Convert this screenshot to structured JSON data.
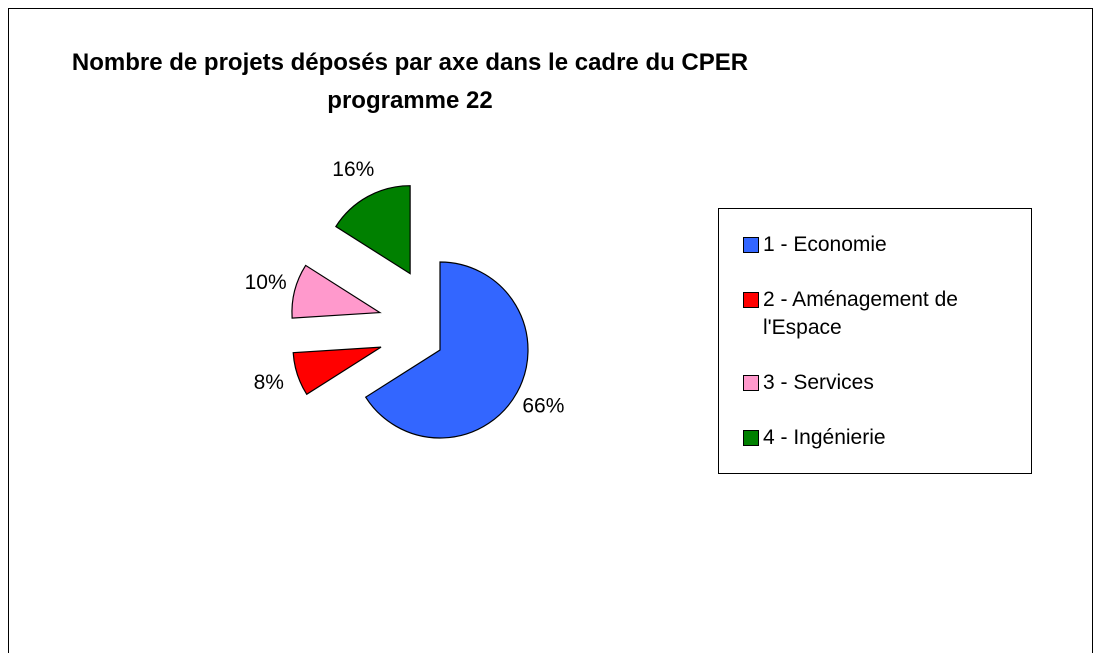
{
  "chart_data": {
    "type": "pie",
    "title": "Nombre de projets déposés par axe dans le cadre du CPER programme 22",
    "categories": [
      "1 - Economie",
      "2 - Aménagement de l'Espace",
      "3 - Services",
      "4 - Ingénierie"
    ],
    "values": [
      66,
      8,
      10,
      16
    ],
    "value_labels": [
      "66%",
      "8%",
      "10%",
      "16%"
    ],
    "colors": [
      "#3366ff",
      "#ff0000",
      "#ff99cc",
      "#008000"
    ],
    "legend": "right"
  }
}
